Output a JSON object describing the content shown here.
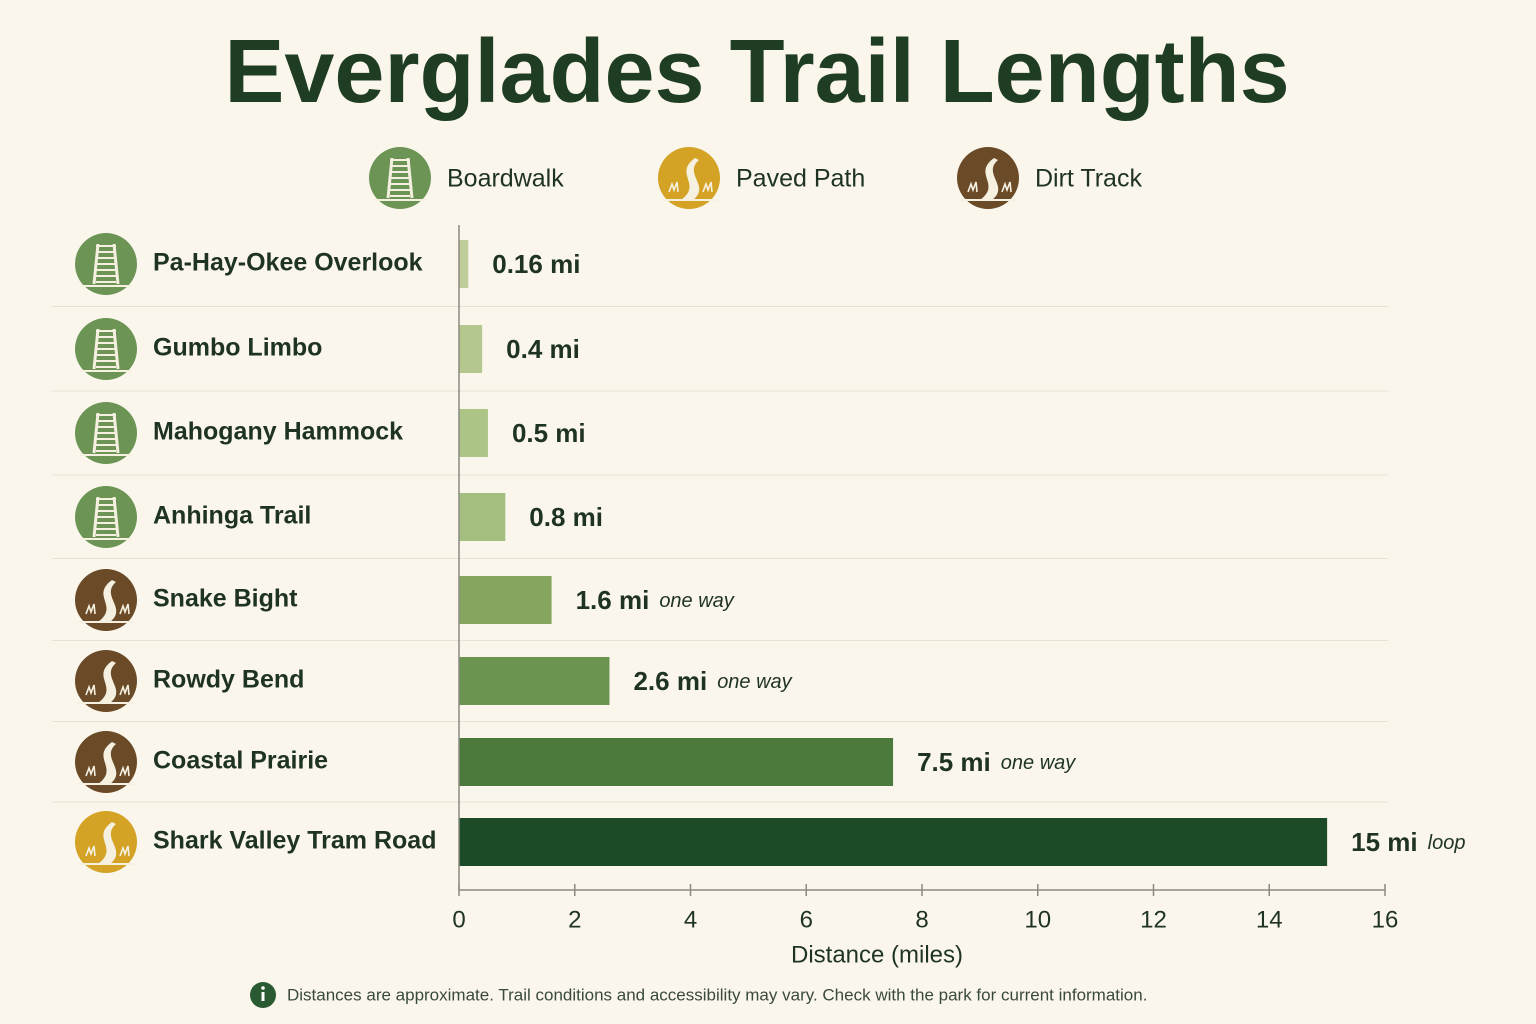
{
  "chart_data": {
    "type": "hbar",
    "title": "Everglades Trail Lengths",
    "legend": [
      {
        "name": "Boardwalk",
        "color": "#6b9455"
      },
      {
        "name": "Paved Path",
        "color": "#d4a224"
      },
      {
        "name": "Dirt Track",
        "color": "#6b4a28"
      }
    ],
    "categories": [
      "Pa-Hay-Okee Overlook",
      "Gumbo Limbo",
      "Mahogany Hammock",
      "Anhinga Trail",
      "Snake Bight",
      "Rowdy Bend",
      "Coastal Prairie",
      "Shark Valley Tram Road"
    ],
    "trail_type": [
      "Boardwalk",
      "Boardwalk",
      "Boardwalk",
      "Boardwalk",
      "Dirt Track",
      "Dirt Track",
      "Dirt Track",
      "Paved Path"
    ],
    "values": [
      0.16,
      0.4,
      0.5,
      0.8,
      1.6,
      2.6,
      7.5,
      15
    ],
    "value_labels": [
      "0.16 mi",
      "0.4 mi",
      "0.5 mi",
      "0.8 mi",
      "1.6 mi",
      "2.6 mi",
      "7.5 mi",
      "15 mi"
    ],
    "notes": [
      null,
      null,
      null,
      null,
      "one way",
      "one way",
      "one way",
      "loop"
    ],
    "colors": [
      "#bfcd9b",
      "#b3c78f",
      "#adc487",
      "#a4be7f",
      "#86a660",
      "#6a9450",
      "#4c7a3c",
      "#1d4b27"
    ],
    "xlabel": "Distance (miles)",
    "xlim": [
      0,
      16
    ],
    "xticks": [
      0,
      2,
      4,
      6,
      8,
      10,
      12,
      14,
      16
    ],
    "footnote": "Distances are approximate. Trail conditions and accessibility may vary. Check with the park for current information."
  }
}
